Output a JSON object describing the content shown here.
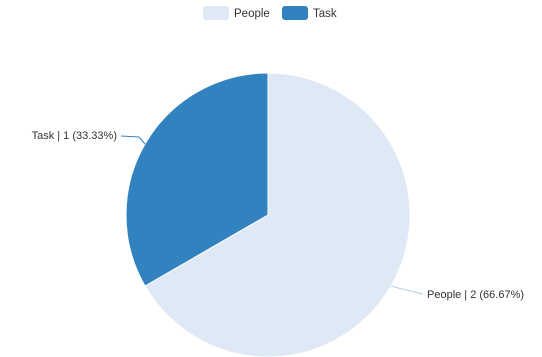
{
  "chart_data": {
    "type": "pie",
    "legend_position": "top-center",
    "slices": [
      {
        "name": "People",
        "value": 2,
        "percent": "66.67%",
        "label": "People | 2 (66.67%)",
        "color": "#dee9f5"
      },
      {
        "name": "Task",
        "value": 1,
        "percent": "33.33%",
        "label": "Task | 1 (33.33%)",
        "color": "#3282bf"
      }
    ]
  }
}
